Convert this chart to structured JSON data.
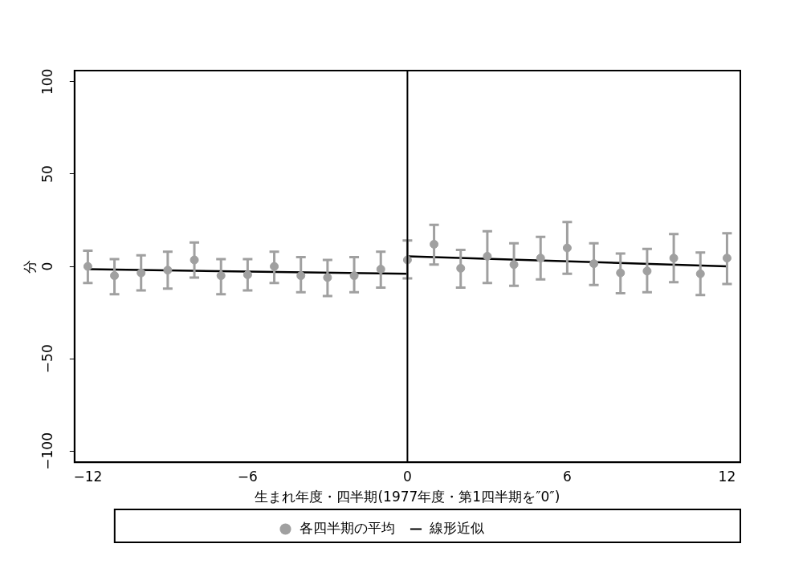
{
  "chart_data": {
    "type": "scatter",
    "xlabel": "生まれ年度・四半期(1977年度・第1四半期を″0″)",
    "ylabel": "分",
    "xlim": [
      -12.5,
      12.5
    ],
    "xticks": [
      -12,
      -6,
      0,
      6,
      12
    ],
    "ylim": [
      -106,
      106
    ],
    "yticks": [
      -100,
      -50,
      0,
      50,
      100
    ],
    "grid": false,
    "legend": "bottom",
    "marker": "circle",
    "ref_lines": [
      {
        "axis": "x",
        "value": 0,
        "color": "#000000"
      }
    ],
    "series": [
      {
        "name": "各四半期の平均",
        "color": "#a0a0a0",
        "x": [
          -12,
          -11,
          -10,
          -9,
          -8,
          -7,
          -6,
          -5,
          -4,
          -3,
          -2,
          -1,
          0,
          1,
          2,
          3,
          4,
          5,
          6,
          7,
          8,
          9,
          10,
          11,
          12
        ],
        "values": [
          0,
          -5,
          -3.5,
          -2,
          3.5,
          -5,
          -4.5,
          0,
          -5,
          -6,
          -5,
          -1.5,
          3.5,
          12,
          -1,
          5.5,
          1,
          4.5,
          10,
          1.5,
          -3.5,
          -2.5,
          4.5,
          -4,
          4.5
        ],
        "errors": [
          [
            -9,
            8.5
          ],
          [
            -15,
            4
          ],
          [
            -13,
            6
          ],
          [
            -12,
            8
          ],
          [
            -6,
            13
          ],
          [
            -15,
            4
          ],
          [
            -13,
            4
          ],
          [
            -9,
            8
          ],
          [
            -14,
            5
          ],
          [
            -16,
            3.5
          ],
          [
            -14,
            5
          ],
          [
            -11.5,
            8
          ],
          [
            -6.5,
            14
          ],
          [
            1,
            22.5
          ],
          [
            -11.5,
            9
          ],
          [
            -9,
            19
          ],
          [
            -10.5,
            12.5
          ],
          [
            -7,
            16
          ],
          [
            -4,
            24
          ],
          [
            -10,
            12.5
          ],
          [
            -14.5,
            7
          ],
          [
            -14,
            9.5
          ],
          [
            -8.5,
            17.5
          ],
          [
            -15.5,
            7.5
          ],
          [
            -9.5,
            18
          ]
        ]
      },
      {
        "name": "線形近似",
        "type": "line",
        "color": "#000000",
        "marker": "none",
        "x": [
          -12,
          0
        ],
        "values": [
          -1.5,
          -4
        ]
      },
      {
        "type": "line",
        "color": "#000000",
        "marker": "none",
        "x": [
          0,
          12
        ],
        "values": [
          5.5,
          0
        ]
      }
    ]
  }
}
